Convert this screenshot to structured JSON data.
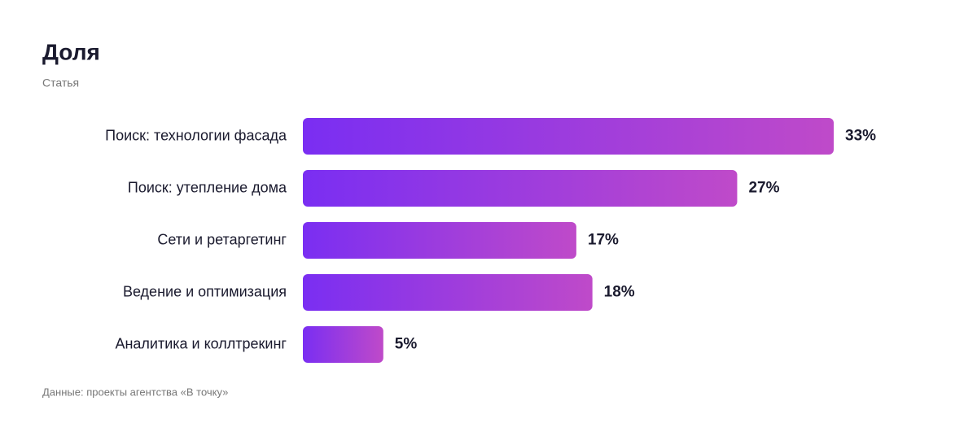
{
  "chart_data": {
    "type": "bar",
    "orientation": "horizontal",
    "title": "Доля",
    "subtitle": "Статья",
    "categories": [
      "Поиск: технологии фасада",
      "Поиск: утепление дома",
      "Сети и ретаргетинг",
      "Ведение и оптимизация",
      "Аналитика и коллтрекинг"
    ],
    "values": [
      33,
      27,
      17,
      18,
      5
    ],
    "value_labels": [
      "33%",
      "27%",
      "17%",
      "18%",
      "5%"
    ],
    "color": [
      "#7a2ef2",
      "#bf4ac9"
    ],
    "source": "Данные: проекты агентства «В точку»"
  }
}
